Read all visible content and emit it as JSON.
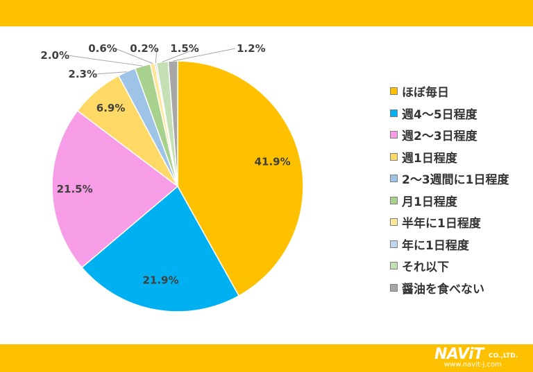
{
  "chart_data": {
    "type": "pie",
    "title": "",
    "categories": [
      "ほぼ毎日",
      "週4～5日程度",
      "週2～3日程度",
      "週1日程度",
      "2～3週間に1日程度",
      "月1日程度",
      "半年に1日程度",
      "年に1日程度",
      "それ以下",
      "醤油を食べない"
    ],
    "values": [
      41.9,
      21.9,
      21.5,
      6.9,
      2.3,
      2.0,
      0.6,
      0.2,
      1.5,
      1.2
    ],
    "labels": [
      "41.9%",
      "21.9%",
      "21.5%",
      "6.9%",
      "2.3%",
      "2.0%",
      "0.6%",
      "0.2%",
      "1.5%",
      "1.2%"
    ],
    "colors": [
      "#FFC000",
      "#00B0F0",
      "#F79CE6",
      "#FFD966",
      "#9DC3E6",
      "#A9D18E",
      "#FFE699",
      "#BDD7EE",
      "#C5E0B4",
      "#A6A6A6"
    ],
    "legend_position": "right",
    "start_angle": "12 o'clock",
    "direction": "clockwise"
  },
  "logo": {
    "name": "NAViT",
    "suffix": "CO.,LTD.",
    "url": "www.navit-j.com"
  }
}
